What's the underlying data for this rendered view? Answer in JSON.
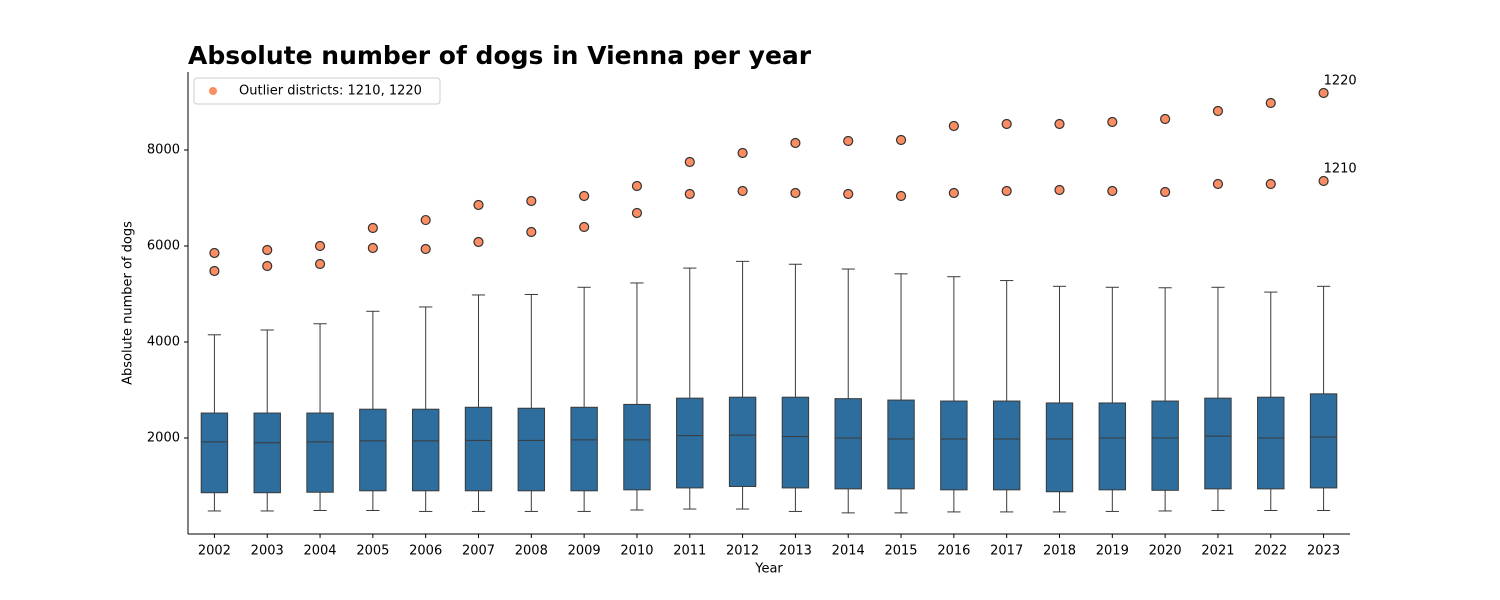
{
  "chart_data": {
    "type": "box",
    "title": "Absolute number of dogs in Vienna per year",
    "x_label": "Year",
    "y_label": "Absolute number of dogs",
    "categories": [
      "2002",
      "2003",
      "2004",
      "2005",
      "2006",
      "2007",
      "2008",
      "2009",
      "2010",
      "2011",
      "2012",
      "2013",
      "2014",
      "2015",
      "2016",
      "2017",
      "2018",
      "2019",
      "2020",
      "2021",
      "2022",
      "2023"
    ],
    "ylim": [
      0,
      9625
    ],
    "yticks": [
      2000,
      4000,
      6000,
      8000
    ],
    "legend_position": "upper left",
    "boxes": {
      "color": "#2d6e9e",
      "low": [
        480,
        480,
        490,
        490,
        470,
        470,
        470,
        470,
        500,
        520,
        520,
        470,
        440,
        440,
        460,
        460,
        460,
        470,
        480,
        490,
        490,
        490
      ],
      "q1": [
        860,
        860,
        870,
        900,
        900,
        900,
        900,
        900,
        920,
        960,
        990,
        960,
        940,
        940,
        920,
        920,
        880,
        920,
        910,
        940,
        940,
        960
      ],
      "median": [
        1920,
        1900,
        1920,
        1940,
        1940,
        1950,
        1950,
        1960,
        1960,
        2050,
        2060,
        2030,
        2000,
        1980,
        1980,
        1980,
        1980,
        2000,
        2000,
        2040,
        2000,
        2020
      ],
      "q3": [
        2520,
        2520,
        2520,
        2600,
        2600,
        2640,
        2620,
        2640,
        2700,
        2830,
        2850,
        2850,
        2820,
        2790,
        2770,
        2770,
        2730,
        2730,
        2770,
        2830,
        2850,
        2920
      ],
      "high": [
        4150,
        4250,
        4380,
        4640,
        4730,
        4980,
        4990,
        5140,
        5230,
        5540,
        5680,
        5620,
        5520,
        5420,
        5360,
        5280,
        5160,
        5140,
        5130,
        5140,
        5040,
        5160
      ]
    },
    "outliers": {
      "name": "Outlier districts: 1210, 1220",
      "color": "#fc8d62",
      "series": [
        {
          "name": "1220",
          "values": [
            5854,
            5917,
            6000,
            6375,
            6540,
            6854,
            6938,
            7042,
            7250,
            7750,
            7938,
            8146,
            8188,
            8208,
            8500,
            8542,
            8542,
            8583,
            8646,
            8813,
            8979,
            9188
          ]
        },
        {
          "name": "1210",
          "values": [
            5479,
            5583,
            5625,
            5958,
            5938,
            6083,
            6292,
            6396,
            6688,
            7083,
            7146,
            7104,
            7083,
            7042,
            7104,
            7146,
            7167,
            7146,
            7125,
            7292,
            7292,
            7354
          ]
        }
      ]
    }
  }
}
